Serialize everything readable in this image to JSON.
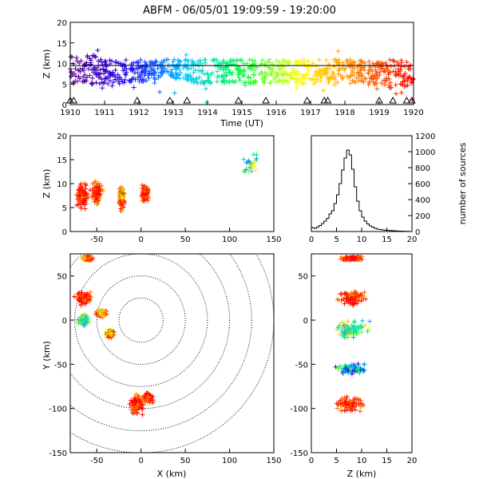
{
  "title": "ABFM - 06/05/01 19:09:59 - 19:20:00",
  "colors": {
    "axis": "#000000",
    "scale": [
      "#5a0080",
      "#2000ff",
      "#00c8ff",
      "#00ff40",
      "#ffff00",
      "#ff8000",
      "#ff0000"
    ]
  },
  "chart_data": [
    {
      "id": "time_height",
      "type": "scatter",
      "xlabel": "Time (UT)",
      "ylabel": "Z (km)",
      "xlim": [
        1910,
        1920
      ],
      "ylim": [
        0,
        20
      ],
      "x_tick_labels": [
        "1910",
        "1911",
        "1912",
        "1913",
        "1914",
        "1915",
        "1916",
        "1917",
        "1918",
        "1919",
        "1920"
      ],
      "y_tick_labels": [
        "0",
        "5",
        "10",
        "15",
        "20"
      ],
      "reference_line_z": 9.5,
      "station_markers_x": [
        1910.0,
        1910.1,
        1911.95,
        1912.9,
        1913.4,
        1914.9,
        1915.7,
        1916.9,
        1917.4,
        1917.5,
        1919.0,
        1919.4,
        1919.8,
        1919.95
      ],
      "source_density": [
        {
          "x": 1910.3,
          "z_low": 5,
          "z_high": 12,
          "color_index": 0
        },
        {
          "x": 1911.2,
          "z_low": 5,
          "z_high": 11,
          "color_index": 0
        },
        {
          "x": 1912.0,
          "z_low": 5,
          "z_high": 11,
          "color_index": 1
        },
        {
          "x": 1913.0,
          "z_low": 6,
          "z_high": 11,
          "color_index": 1
        },
        {
          "x": 1913.8,
          "z_low": 5,
          "z_high": 11,
          "color_index": 2
        },
        {
          "x": 1915.0,
          "z_low": 5,
          "z_high": 11,
          "color_index": 2
        },
        {
          "x": 1916.0,
          "z_low": 5,
          "z_high": 11,
          "color_index": 3
        },
        {
          "x": 1917.0,
          "z_low": 5,
          "z_high": 11,
          "color_index": 3
        },
        {
          "x": 1917.6,
          "z_low": 5,
          "z_high": 11,
          "color_index": 4
        },
        {
          "x": 1918.5,
          "z_low": 5,
          "z_high": 11,
          "color_index": 5
        },
        {
          "x": 1919.5,
          "z_low": 4,
          "z_high": 11,
          "color_index": 6
        }
      ]
    },
    {
      "id": "xz_projection",
      "type": "scatter",
      "xlabel": "",
      "ylabel": "Z (km)",
      "xlim": [
        -80,
        150
      ],
      "ylim": [
        0,
        20
      ],
      "x_tick_labels": [
        "-50",
        "0",
        "50",
        "100",
        "150"
      ],
      "y_tick_labels": [
        "0",
        "5",
        "10",
        "15",
        "20"
      ],
      "clusters": [
        {
          "x": -66,
          "z": 7.5,
          "spread_x": 8,
          "spread_z": 3,
          "color_index": 6
        },
        {
          "x": -50,
          "z": 8,
          "spread_x": 8,
          "spread_z": 3,
          "color_index": 6
        },
        {
          "x": -22,
          "z": 7,
          "spread_x": 4,
          "spread_z": 3,
          "color_index": 5
        },
        {
          "x": 5,
          "z": 8,
          "spread_x": 5,
          "spread_z": 2,
          "color_index": 6
        },
        {
          "x": 125,
          "z": 14,
          "spread_x": 15,
          "spread_z": 3,
          "color_index": 3
        }
      ]
    },
    {
      "id": "source_histogram",
      "type": "bar",
      "xlabel": "",
      "ylabel": "number of sources",
      "xlim": [
        0,
        20
      ],
      "ylim": [
        0,
        1200
      ],
      "x_tick_labels": [
        "0",
        "5",
        "10",
        "15",
        "20"
      ],
      "y_tick_labels": [
        "0",
        "200",
        "400",
        "600",
        "800",
        "1000",
        "1200"
      ],
      "bin_width": 0.5,
      "categories": [
        0.5,
        1.0,
        1.5,
        2.0,
        2.5,
        3.0,
        3.5,
        4.0,
        4.5,
        5.0,
        5.5,
        6.0,
        6.5,
        7.0,
        7.5,
        8.0,
        8.5,
        9.0,
        9.5,
        10.0,
        10.5,
        11.0,
        11.5,
        12.0,
        12.5,
        13.0,
        13.5,
        14.0,
        14.5,
        15.0,
        15.5,
        16.0,
        16.5,
        17.0,
        17.5,
        18.0,
        18.5,
        19.0,
        19.5
      ],
      "values": [
        50,
        40,
        55,
        75,
        100,
        130,
        165,
        220,
        260,
        350,
        460,
        600,
        770,
        920,
        1020,
        960,
        780,
        560,
        380,
        260,
        180,
        130,
        95,
        70,
        55,
        40,
        30,
        25,
        20,
        18,
        15,
        12,
        10,
        8,
        6,
        5,
        4,
        3,
        2
      ]
    },
    {
      "id": "xy_plan",
      "type": "scatter",
      "xlabel": "X (km)",
      "ylabel": "Y (km)",
      "xlim": [
        -80,
        150
      ],
      "ylim": [
        -150,
        75
      ],
      "x_tick_labels": [
        "-50",
        "0",
        "50",
        "100",
        "150"
      ],
      "y_tick_labels": [
        "-150",
        "-100",
        "-50",
        "0",
        "50"
      ],
      "range_rings_km": [
        25,
        50,
        75,
        100,
        125,
        150
      ],
      "clusters": [
        {
          "x": -60,
          "y": 70,
          "spread_x": 8,
          "spread_y": 3,
          "color_index": 6
        },
        {
          "x": -65,
          "y": 25,
          "spread_x": 12,
          "spread_y": 10,
          "color_index": 6
        },
        {
          "x": -65,
          "y": 0,
          "spread_x": 8,
          "spread_y": 8,
          "color_index": 3
        },
        {
          "x": -45,
          "y": 8,
          "spread_x": 8,
          "spread_y": 5,
          "color_index": 5
        },
        {
          "x": -35,
          "y": -15,
          "spread_x": 6,
          "spread_y": 6,
          "color_index": 5
        },
        {
          "x": -5,
          "y": -95,
          "spread_x": 10,
          "spread_y": 15,
          "color_index": 6
        },
        {
          "x": 8,
          "y": -88,
          "spread_x": 6,
          "spread_y": 8,
          "color_index": 6
        }
      ]
    },
    {
      "id": "yz_projection",
      "type": "scatter",
      "xlabel": "Z (km)",
      "ylabel": "",
      "xlim": [
        0,
        20
      ],
      "ylim": [
        -150,
        75
      ],
      "x_tick_labels": [
        "0",
        "5",
        "10",
        "15",
        "20"
      ],
      "y_tick_labels": [
        "-150",
        "-100",
        "-50",
        "0",
        "50"
      ],
      "clusters": [
        {
          "z": 8,
          "y": 70,
          "spread_z": 3,
          "spread_y": 3,
          "color_index": 6
        },
        {
          "z": 8,
          "y": 25,
          "spread_z": 4,
          "spread_y": 10,
          "color_index": 6
        },
        {
          "z": 8,
          "y": -10,
          "spread_z": 4,
          "spread_y": 12,
          "color_index": 3
        },
        {
          "z": 8,
          "y": -55,
          "spread_z": 4,
          "spread_y": 8,
          "color_index": 2
        },
        {
          "z": 8,
          "y": -95,
          "spread_z": 4,
          "spread_y": 12,
          "color_index": 6
        }
      ]
    }
  ]
}
